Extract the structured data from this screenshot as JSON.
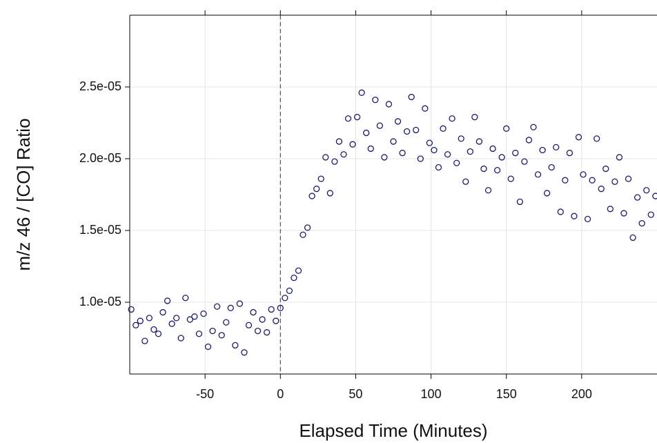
{
  "chart_data": {
    "type": "scatter",
    "x_label": "Elapsed Time (Minutes)",
    "y_label": "m/z 46 / [CO] Ratio",
    "xlim": [
      -100,
      250
    ],
    "ylim": [
      5e-06,
      3e-05
    ],
    "xticks": [
      -50,
      0,
      50,
      100,
      150,
      200
    ],
    "yticks": [
      {
        "value": 1e-05,
        "label": "1.0e-05"
      },
      {
        "value": 1.5e-05,
        "label": "1.5e-05"
      },
      {
        "value": 2e-05,
        "label": "2.0e-05"
      },
      {
        "value": 2.5e-05,
        "label": "2.5e-05"
      }
    ],
    "grid": true,
    "vlines": [
      0
    ],
    "series": [
      {
        "color": "#1a1a6e",
        "x": [
          -99,
          -96,
          -93,
          -90,
          -87,
          -84,
          -81,
          -78,
          -75,
          -72,
          -69,
          -66,
          -63,
          -60,
          -57,
          -54,
          -51,
          -48,
          -45,
          -42,
          -39,
          -36,
          -33,
          -30,
          -27,
          -24,
          -21,
          -18,
          -15,
          -12,
          -9,
          -6,
          -3,
          0,
          3,
          6,
          9,
          12,
          15,
          18,
          21,
          24,
          27,
          30,
          33,
          36,
          39,
          42,
          45,
          48,
          51,
          54,
          57,
          60,
          63,
          66,
          69,
          72,
          75,
          78,
          81,
          84,
          87,
          90,
          93,
          96,
          99,
          102,
          105,
          108,
          111,
          114,
          117,
          120,
          123,
          126,
          129,
          132,
          135,
          138,
          141,
          144,
          147,
          150,
          153,
          156,
          159,
          162,
          165,
          168,
          171,
          174,
          177,
          180,
          183,
          186,
          189,
          192,
          195,
          198,
          201,
          204,
          207,
          210,
          213,
          216,
          219,
          222,
          225,
          228,
          231,
          234,
          237,
          240,
          243,
          246,
          249
        ],
        "values": [
          9.5e-06,
          8.4e-06,
          8.7e-06,
          7.3e-06,
          8.9e-06,
          8.1e-06,
          7.8e-06,
          9.3e-06,
          1.01e-05,
          8.5e-06,
          8.9e-06,
          7.5e-06,
          1.03e-05,
          8.8e-06,
          9e-06,
          7.8e-06,
          9.2e-06,
          6.9e-06,
          8e-06,
          9.7e-06,
          7.7e-06,
          8.6e-06,
          9.6e-06,
          7e-06,
          9.9e-06,
          6.5e-06,
          8.4e-06,
          9.3e-06,
          8e-06,
          8.8e-06,
          7.9e-06,
          9.5e-06,
          8.7e-06,
          9.6e-06,
          1.03e-05,
          1.08e-05,
          1.17e-05,
          1.22e-05,
          1.47e-05,
          1.52e-05,
          1.74e-05,
          1.79e-05,
          1.86e-05,
          2.01e-05,
          1.76e-05,
          1.98e-05,
          2.12e-05,
          2.03e-05,
          2.28e-05,
          2.1e-05,
          2.29e-05,
          2.46e-05,
          2.18e-05,
          2.07e-05,
          2.41e-05,
          2.23e-05,
          2.01e-05,
          2.38e-05,
          2.12e-05,
          2.26e-05,
          2.04e-05,
          2.19e-05,
          2.43e-05,
          2.2e-05,
          2e-05,
          2.35e-05,
          2.11e-05,
          2.06e-05,
          1.94e-05,
          2.21e-05,
          2.03e-05,
          2.28e-05,
          1.97e-05,
          2.14e-05,
          1.84e-05,
          2.05e-05,
          2.29e-05,
          2.12e-05,
          1.93e-05,
          1.78e-05,
          2.07e-05,
          1.92e-05,
          2.01e-05,
          2.21e-05,
          1.86e-05,
          2.04e-05,
          1.7e-05,
          1.98e-05,
          2.13e-05,
          2.22e-05,
          1.89e-05,
          2.06e-05,
          1.76e-05,
          1.94e-05,
          2.08e-05,
          1.63e-05,
          1.85e-05,
          2.04e-05,
          1.6e-05,
          2.15e-05,
          1.89e-05,
          1.58e-05,
          1.85e-05,
          2.14e-05,
          1.79e-05,
          1.93e-05,
          1.65e-05,
          1.84e-05,
          2.01e-05,
          1.62e-05,
          1.86e-05,
          1.45e-05,
          1.73e-05,
          1.55e-05,
          1.78e-05,
          1.61e-05,
          1.74e-05
        ]
      }
    ]
  }
}
